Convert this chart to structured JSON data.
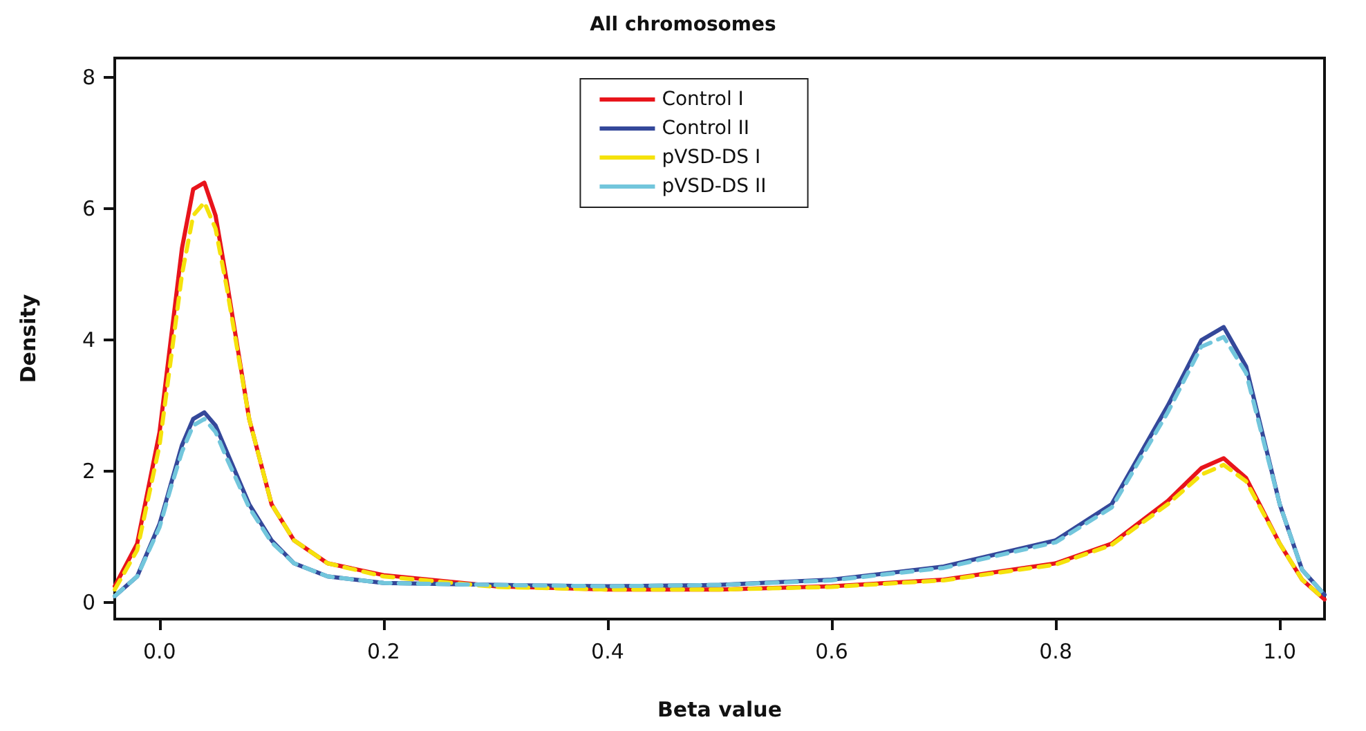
{
  "chart_data": {
    "type": "line",
    "title": "All chromosomes",
    "xlabel": "Beta value",
    "ylabel": "Density",
    "x": [
      -0.04,
      -0.02,
      0,
      0.01,
      0.02,
      0.03,
      0.04,
      0.05,
      0.06,
      0.08,
      0.1,
      0.12,
      0.15,
      0.2,
      0.3,
      0.4,
      0.5,
      0.6,
      0.7,
      0.8,
      0.85,
      0.9,
      0.93,
      0.95,
      0.97,
      1.0,
      1.02,
      1.04
    ],
    "series": [
      {
        "name": "Control I",
        "color": "#e8141b",
        "line_style": "solid",
        "values": [
          0.25,
          0.9,
          2.6,
          4.0,
          5.4,
          6.3,
          6.4,
          5.9,
          4.9,
          2.8,
          1.5,
          0.95,
          0.6,
          0.42,
          0.25,
          0.2,
          0.2,
          0.25,
          0.35,
          0.6,
          0.9,
          1.55,
          2.05,
          2.2,
          1.9,
          0.9,
          0.35,
          0.05
        ]
      },
      {
        "name": "Control II",
        "color": "#34489a",
        "line_style": "solid",
        "values": [
          0.1,
          0.4,
          1.2,
          1.8,
          2.4,
          2.8,
          2.9,
          2.7,
          2.3,
          1.5,
          0.95,
          0.6,
          0.4,
          0.3,
          0.27,
          0.25,
          0.27,
          0.35,
          0.55,
          0.95,
          1.5,
          3.0,
          4.0,
          4.2,
          3.6,
          1.5,
          0.5,
          0.12
        ]
      },
      {
        "name": "pVSD-DS I",
        "color": "#f5e20c",
        "line_style": "dashed",
        "values": [
          0.2,
          0.8,
          2.4,
          3.7,
          5.0,
          5.9,
          6.1,
          5.7,
          4.8,
          2.8,
          1.5,
          0.95,
          0.6,
          0.4,
          0.24,
          0.2,
          0.2,
          0.24,
          0.34,
          0.58,
          0.88,
          1.5,
          1.95,
          2.1,
          1.85,
          0.9,
          0.35,
          0.05
        ]
      },
      {
        "name": "pVSD-DS II",
        "color": "#72c6dc",
        "line_style": "dashed",
        "values": [
          0.1,
          0.4,
          1.15,
          1.75,
          2.3,
          2.7,
          2.8,
          2.6,
          2.2,
          1.45,
          0.92,
          0.6,
          0.4,
          0.3,
          0.27,
          0.25,
          0.27,
          0.34,
          0.53,
          0.92,
          1.45,
          2.9,
          3.9,
          4.05,
          3.5,
          1.5,
          0.5,
          0.12
        ]
      }
    ],
    "xlim": [
      -0.04,
      1.04
    ],
    "xticks": [
      {
        "value": 0,
        "label": "0.0"
      },
      0.2,
      0.4,
      0.6,
      0.8,
      {
        "value": 1,
        "label": "1.0"
      }
    ],
    "ylim": [
      -0.25,
      8.3
    ],
    "yticks": [
      0,
      2,
      4,
      6,
      8
    ],
    "grid": false,
    "legend": "top",
    "marker": "none"
  }
}
